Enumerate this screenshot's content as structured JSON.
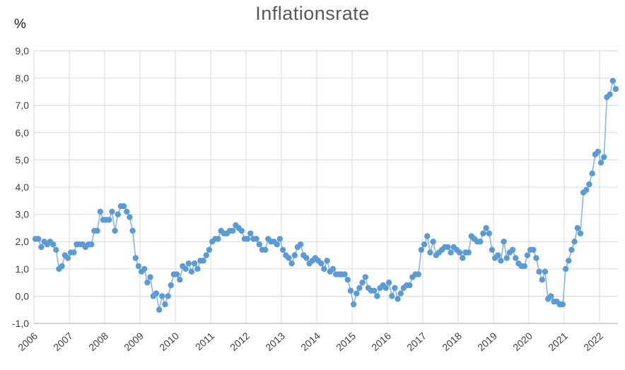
{
  "chart": {
    "title": "Inflationsrate",
    "y_unit_label": "%"
  },
  "chart_data": {
    "type": "line",
    "title": "Inflationsrate",
    "xlabel": "",
    "ylabel": "%",
    "legend": false,
    "grid": true,
    "marker": "circle",
    "marker_color": "#5b9bd5",
    "line_color": "#8ab6e2",
    "gridline_color": "#d9d9d9",
    "axis_line_color": "#b7b7b7",
    "ylim": [
      -1.0,
      9.0
    ],
    "frequency": "monthly",
    "x_start": "2006-01",
    "y_ticks": [
      {
        "v": 9,
        "label": "9,0"
      },
      {
        "v": 8,
        "label": "8,0"
      },
      {
        "v": 7,
        "label": "7,0"
      },
      {
        "v": 6,
        "label": "6,0"
      },
      {
        "v": 5,
        "label": "5,0"
      },
      {
        "v": 4,
        "label": "4,0"
      },
      {
        "v": 3,
        "label": "3,0"
      },
      {
        "v": 2,
        "label": "2,0"
      },
      {
        "v": 1,
        "label": "1,0"
      },
      {
        "v": 0,
        "label": "0,0"
      },
      {
        "v": -1,
        "label": "-1,0"
      }
    ],
    "x_tick_years": [
      "2006",
      "2007",
      "2008",
      "2009",
      "2010",
      "2011",
      "2012",
      "2013",
      "2014",
      "2015",
      "2016",
      "2017",
      "2018",
      "2019",
      "2020",
      "2021",
      "2022"
    ],
    "values_by_year": {
      "2006": [
        2.1,
        2.1,
        1.8,
        2.0,
        1.9,
        2.0,
        1.9,
        1.7,
        1.0,
        1.1,
        1.5,
        1.4
      ],
      "2007": [
        1.6,
        1.6,
        1.9,
        1.9,
        1.9,
        1.8,
        1.9,
        1.9,
        2.4,
        2.4,
        3.1,
        2.8
      ],
      "2008": [
        2.8,
        2.8,
        3.1,
        2.4,
        3.0,
        3.3,
        3.3,
        3.1,
        2.9,
        2.4,
        1.4,
        1.1
      ],
      "2009": [
        0.9,
        1.0,
        0.5,
        0.7,
        0.0,
        0.1,
        -0.5,
        0.0,
        -0.3,
        0.0,
        0.4,
        0.8
      ],
      "2010": [
        0.8,
        0.6,
        1.1,
        1.0,
        1.2,
        0.9,
        1.2,
        1.0,
        1.3,
        1.3,
        1.5,
        1.7
      ],
      "2011": [
        2.0,
        2.1,
        2.1,
        2.4,
        2.3,
        2.3,
        2.4,
        2.4,
        2.6,
        2.5,
        2.4,
        2.1
      ],
      "2012": [
        2.1,
        2.3,
        2.1,
        2.1,
        1.9,
        1.7,
        1.7,
        2.1,
        2.0,
        2.0,
        1.9,
        2.1
      ],
      "2013": [
        1.7,
        1.5,
        1.4,
        1.2,
        1.5,
        1.8,
        1.9,
        1.5,
        1.4,
        1.2,
        1.3,
        1.4
      ],
      "2014": [
        1.3,
        1.2,
        1.0,
        1.3,
        0.9,
        1.0,
        0.8,
        0.8,
        0.8,
        0.8,
        0.6,
        0.2
      ],
      "2015": [
        -0.3,
        0.1,
        0.3,
        0.5,
        0.7,
        0.3,
        0.2,
        0.2,
        0.0,
        0.3,
        0.4,
        0.3
      ],
      "2016": [
        0.5,
        0.0,
        0.3,
        -0.1,
        0.1,
        0.3,
        0.4,
        0.4,
        0.7,
        0.8,
        0.8,
        1.7
      ],
      "2017": [
        1.9,
        2.2,
        1.6,
        2.0,
        1.5,
        1.6,
        1.7,
        1.8,
        1.8,
        1.6,
        1.8,
        1.7
      ],
      "2018": [
        1.6,
        1.4,
        1.6,
        1.6,
        2.2,
        2.1,
        2.0,
        2.0,
        2.3,
        2.5,
        2.3,
        1.7
      ],
      "2019": [
        1.4,
        1.5,
        1.3,
        2.0,
        1.4,
        1.6,
        1.7,
        1.4,
        1.2,
        1.1,
        1.1,
        1.5
      ],
      "2020": [
        1.7,
        1.7,
        1.4,
        0.9,
        0.6,
        0.9,
        -0.1,
        0.0,
        -0.2,
        -0.2,
        -0.3,
        -0.3
      ],
      "2021": [
        1.0,
        1.3,
        1.7,
        2.0,
        2.5,
        2.3,
        3.8,
        3.9,
        4.1,
        4.5,
        5.2,
        5.3
      ],
      "2022": [
        4.9,
        5.1,
        7.3,
        7.4,
        7.9,
        7.6
      ]
    }
  }
}
